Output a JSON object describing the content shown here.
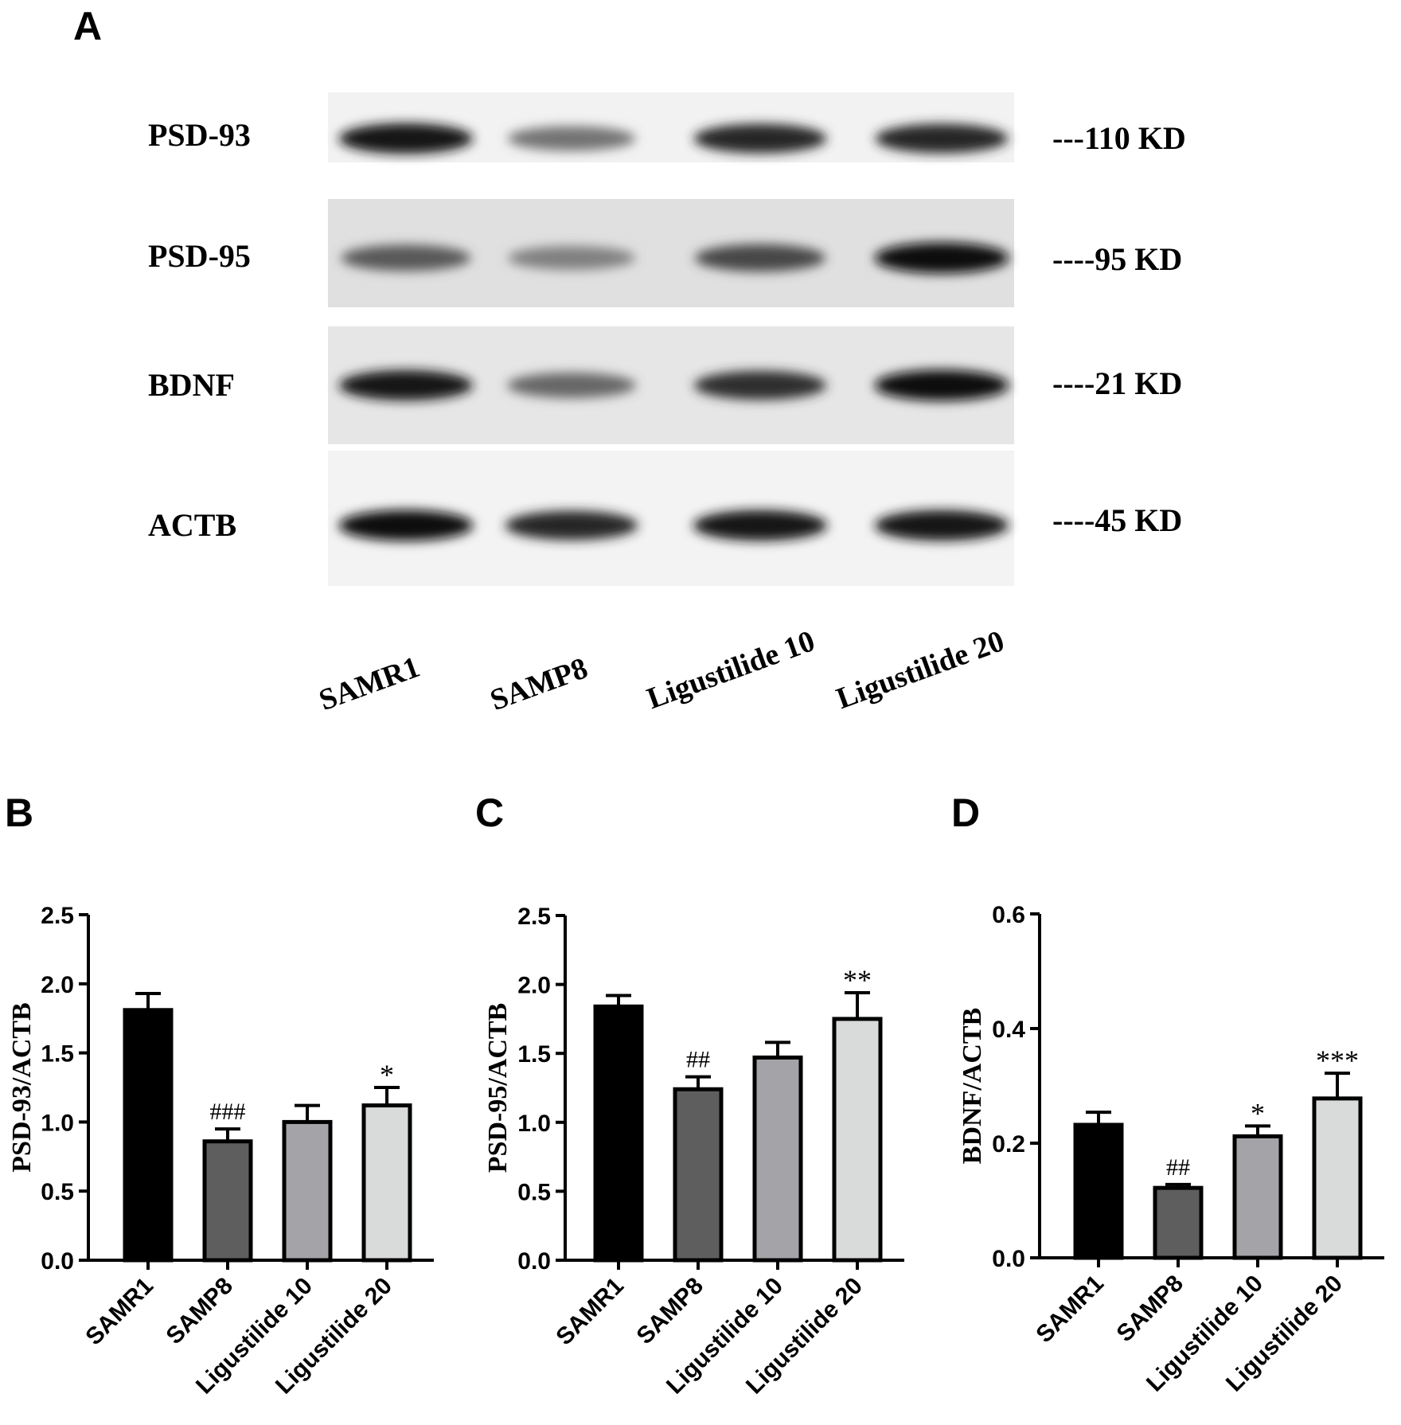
{
  "panel_a": {
    "letter": "A",
    "blots": [
      {
        "protein": "PSD-93",
        "size": "---110 KD",
        "intensities": [
          0.92,
          0.55,
          0.85,
          0.85
        ]
      },
      {
        "protein": "PSD-95",
        "size": "----95 KD",
        "intensities": [
          0.65,
          0.5,
          0.72,
          0.95
        ]
      },
      {
        "protein": "BDNF",
        "size": "----21 KD",
        "intensities": [
          0.9,
          0.6,
          0.82,
          0.95
        ]
      },
      {
        "protein": "ACTB",
        "size": "----45 KD",
        "intensities": [
          0.95,
          0.85,
          0.92,
          0.92
        ]
      }
    ],
    "lanes": [
      "SAMR1",
      "SAMP8",
      "Ligustilide 10",
      "Ligustilide 20"
    ]
  },
  "chart_data": [
    {
      "panel": "B",
      "type": "bar",
      "categories": [
        "SAMR1",
        "SAMP8",
        "Ligustilide 10",
        "Ligustilide 20"
      ],
      "values": [
        1.81,
        0.86,
        1.0,
        1.12
      ],
      "errors": [
        0.12,
        0.09,
        0.12,
        0.13
      ],
      "annotations": [
        "",
        "###",
        "",
        "*"
      ],
      "ylabel": "PSD-93/ACTB",
      "ylim": [
        0,
        2.5
      ],
      "yticks": [
        "0.0",
        "0.5",
        "1.0",
        "1.5",
        "2.0",
        "2.5"
      ],
      "colors": [
        "#000000",
        "#5e5e5e",
        "#a3a3a8",
        "#d9dbdb"
      ]
    },
    {
      "panel": "C",
      "type": "bar",
      "categories": [
        "SAMR1",
        "SAMP8",
        "Ligustilide 10",
        "Ligustilide 20"
      ],
      "values": [
        1.84,
        1.24,
        1.47,
        1.75
      ],
      "errors": [
        0.08,
        0.09,
        0.11,
        0.19
      ],
      "annotations": [
        "",
        "##",
        "",
        "**"
      ],
      "ylabel": "PSD-95/ACTB",
      "ylim": [
        0,
        2.5
      ],
      "yticks": [
        "0.0",
        "0.5",
        "1.0",
        "1.5",
        "2.0",
        "2.5"
      ],
      "colors": [
        "#000000",
        "#5e5e5e",
        "#a3a3a8",
        "#d9dbdb"
      ]
    },
    {
      "panel": "D",
      "type": "bar",
      "categories": [
        "SAMR1",
        "SAMP8",
        "Ligustilide 10",
        "Ligustilide 20"
      ],
      "values": [
        0.232,
        0.122,
        0.212,
        0.278
      ],
      "errors": [
        0.022,
        0.006,
        0.018,
        0.044
      ],
      "annotations": [
        "",
        "##",
        "*",
        "***"
      ],
      "ylabel": "BDNF/ACTB",
      "ylim": [
        0,
        0.6
      ],
      "yticks": [
        "0.0",
        "0.2",
        "0.4",
        "0.6"
      ],
      "colors": [
        "#000000",
        "#5e5e5e",
        "#a3a3a8",
        "#d9dbdb"
      ]
    }
  ]
}
